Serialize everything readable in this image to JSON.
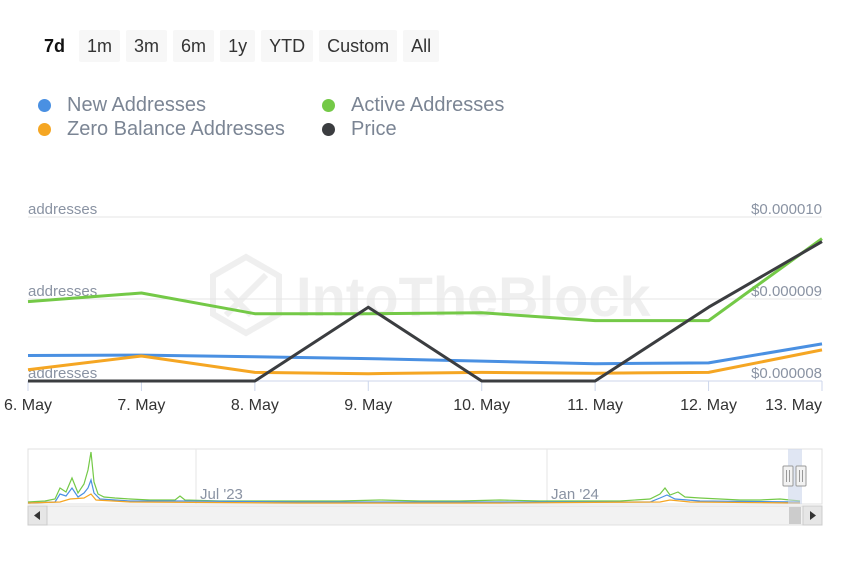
{
  "range_selector": {
    "buttons": [
      "7d",
      "1m",
      "3m",
      "6m",
      "1y",
      "YTD",
      "Custom",
      "All"
    ],
    "active": "7d"
  },
  "legend": [
    {
      "label": "New Addresses",
      "color": "#4a90e2"
    },
    {
      "label": "Active Addresses",
      "color": "#74c947"
    },
    {
      "label": "Zero Balance Addresses",
      "color": "#f5a623"
    },
    {
      "label": "Price",
      "color": "#3b3d40"
    }
  ],
  "watermark": "IntoTheBlock",
  "chart_data": {
    "type": "line",
    "categories": [
      "6. May",
      "7. May",
      "8. May",
      "9. May",
      "10. May",
      "11. May",
      "12. May",
      "13. May"
    ],
    "left_axis_labels": [
      "addresses",
      "addresses",
      "addresses"
    ],
    "right_axis_labels": [
      "$0.000010",
      "$0.000009",
      "$0.000008"
    ],
    "right_axis_range": [
      8e-06,
      1e-05
    ],
    "grid": true,
    "legend_position": "top-left",
    "series": [
      {
        "name": "New Addresses",
        "color": "#4a90e2",
        "axis": "left",
        "values": [
          0.195,
          0.2,
          0.18,
          0.16,
          0.13,
          0.1,
          0.11,
          0.33
        ]
      },
      {
        "name": "Active Addresses",
        "color": "#74c947",
        "axis": "left",
        "values": [
          0.82,
          0.92,
          0.68,
          0.68,
          0.69,
          0.6,
          0.6,
          1.55
        ]
      },
      {
        "name": "Zero Balance Addresses",
        "color": "#f5a623",
        "axis": "left",
        "values": [
          0.03,
          0.19,
          0.0,
          -0.015,
          0.0,
          -0.01,
          0.0,
          0.26
        ]
      },
      {
        "name": "Price",
        "color": "#3b3d40",
        "axis": "right",
        "values": [
          8e-06,
          8e-06,
          8e-06,
          8.9e-06,
          8e-06,
          8e-06,
          8.9e-06,
          9.7e-06
        ]
      }
    ],
    "navigator": {
      "labels": [
        "Jul '23",
        "Jan '24"
      ]
    }
  }
}
